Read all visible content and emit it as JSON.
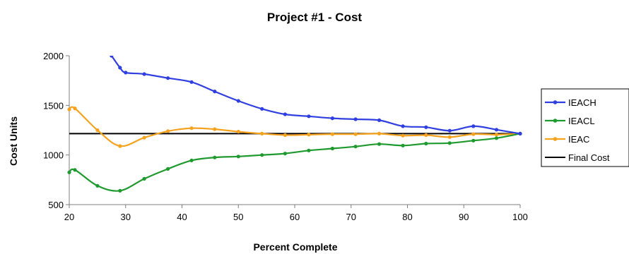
{
  "chart_data": {
    "type": "line",
    "title": "Project #1 - Cost",
    "xlabel": "Percent Complete",
    "ylabel": "Cost Units",
    "xlim": [
      20,
      100
    ],
    "ylim": [
      500,
      2000
    ],
    "x_ticks": [
      20,
      30,
      40,
      50,
      60,
      70,
      80,
      90,
      100
    ],
    "y_ticks": [
      500,
      1000,
      1500,
      2000
    ],
    "grid": false,
    "legend": "right",
    "series": [
      {
        "name": "IEACH",
        "color": "#2f3fe0",
        "marker": true,
        "x": [
          27.5,
          29,
          30,
          33.3,
          37.5,
          41.7,
          45.8,
          50,
          54.2,
          58.3,
          62.5,
          66.7,
          70.8,
          75,
          79.2,
          83.3,
          87.5,
          91.7,
          95.8,
          100
        ],
        "y": [
          2000,
          1880,
          1830,
          1815,
          1775,
          1735,
          1640,
          1545,
          1465,
          1410,
          1390,
          1370,
          1360,
          1350,
          1290,
          1280,
          1245,
          1290,
          1255,
          1215
        ]
      },
      {
        "name": "IEACL",
        "color": "#1f9a2e",
        "marker": true,
        "x": [
          20,
          21,
          25,
          29,
          33.3,
          37.5,
          41.7,
          45.8,
          50,
          54.2,
          58.3,
          62.5,
          66.7,
          70.8,
          75,
          79.2,
          83.3,
          87.5,
          91.7,
          95.8,
          100
        ],
        "y": [
          825,
          850,
          690,
          640,
          760,
          860,
          945,
          975,
          985,
          1000,
          1015,
          1045,
          1065,
          1085,
          1110,
          1095,
          1115,
          1120,
          1145,
          1170,
          1215
        ]
      },
      {
        "name": "IEAC",
        "color": "#f5a21f",
        "marker": true,
        "x": [
          20,
          21,
          25,
          29,
          33.3,
          37.5,
          41.7,
          45.8,
          50,
          54.2,
          58.3,
          62.5,
          66.7,
          70.8,
          75,
          79.2,
          83.3,
          87.5,
          91.7,
          95.8,
          100
        ],
        "y": [
          1460,
          1470,
          1250,
          1090,
          1175,
          1240,
          1270,
          1260,
          1235,
          1215,
          1200,
          1205,
          1210,
          1210,
          1215,
          1195,
          1200,
          1180,
          1210,
          1205,
          1215
        ]
      },
      {
        "name": "Final Cost",
        "color": "#000000",
        "marker": false,
        "x": [
          20,
          100
        ],
        "y": [
          1215,
          1215
        ]
      }
    ]
  }
}
